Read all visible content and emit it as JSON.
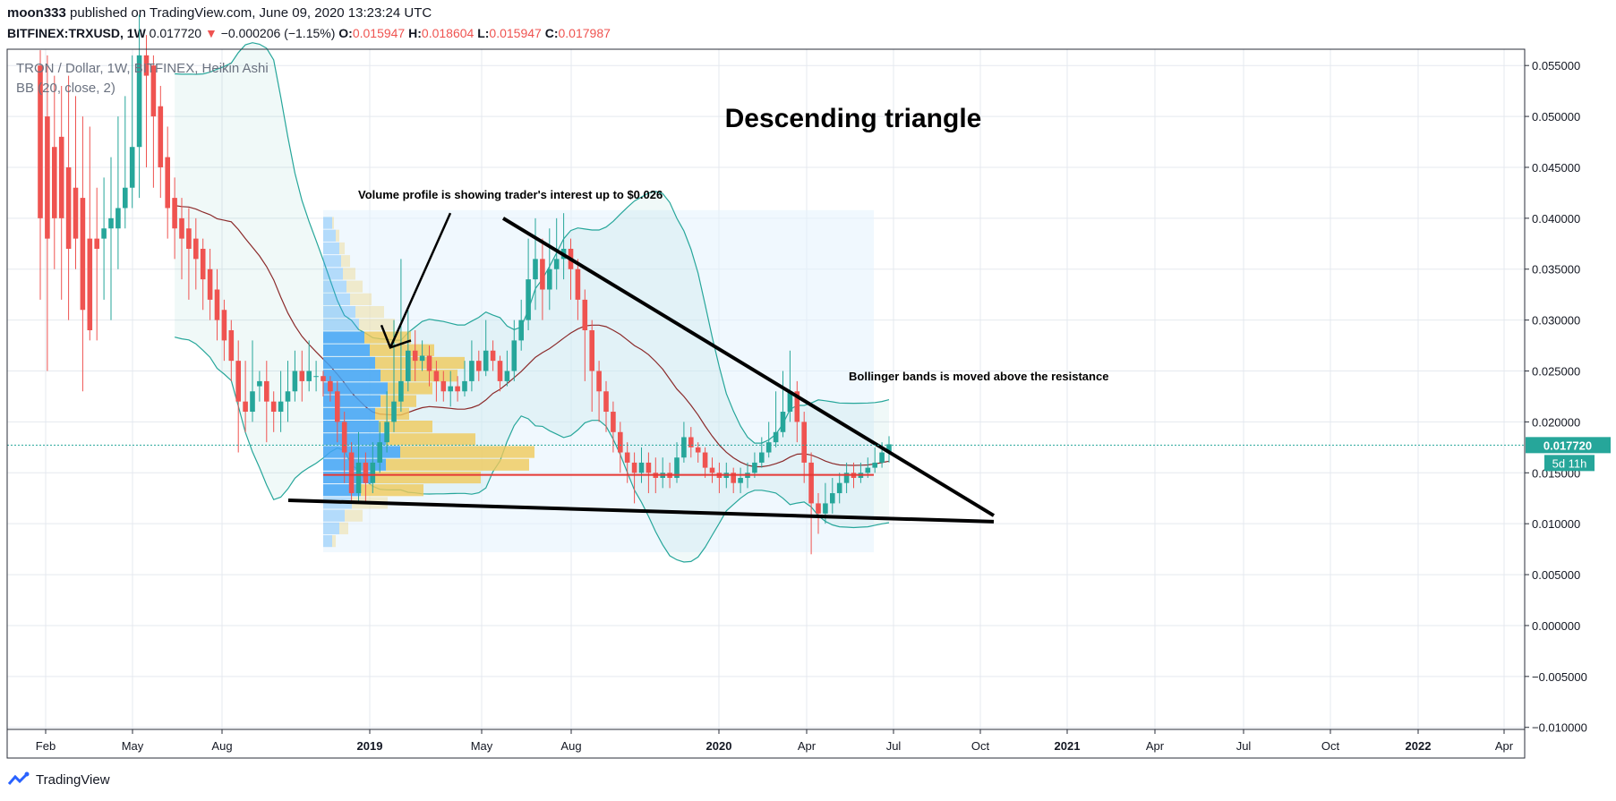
{
  "header": {
    "author": "moon333",
    "published_text": "published on TradingView.com, June 09, 2020 13:23:24 UTC",
    "symbol": "BITFINEX:TRXUSD, 1W",
    "last": "0.017720",
    "change": "−0.000206 (−1.15%)",
    "open_label": "O:",
    "open": "0.015947",
    "high_label": "H:",
    "high": "0.018604",
    "low_label": "L:",
    "low": "0.015947",
    "close_label": "C:",
    "close": "0.017987"
  },
  "legend": {
    "title": "TRON / Dollar, 1W, BITFINEX, Heikin Ashi",
    "indicator": "BB (20, close, 2)"
  },
  "footer": {
    "brand": "TradingView"
  },
  "colors": {
    "up": "#26a69a",
    "down": "#ef5350",
    "band": "#26a69a",
    "basis": "#8b2a2a",
    "vp_up": "#42a5f5",
    "vp_down": "#f0c95a"
  },
  "chart_data": {
    "type": "candlestick",
    "title": "Descending triangle",
    "y_ticks": [
      "0.055000",
      "0.050000",
      "0.045000",
      "0.040000",
      "0.035000",
      "0.030000",
      "0.025000",
      "0.020000",
      "0.015000",
      "0.010000",
      "0.005000",
      "0.000000",
      "−0.005000",
      "−0.010000"
    ],
    "ylim": [
      -0.0102,
      0.0566
    ],
    "x_ticks": [
      "Feb",
      "May",
      "Aug",
      "2019",
      "May",
      "Aug",
      "2020",
      "Apr",
      "Jul",
      "Oct",
      "2021",
      "Apr",
      "Jul",
      "Oct",
      "2022",
      "Apr"
    ],
    "last_price_label": "0.017720",
    "countdown_label": "5d 11h",
    "support_level": 0.0148,
    "annotations": [
      {
        "text": "Volume profile is showing trader's interest up to $0.026"
      },
      {
        "text": "Bollinger bands is moved above the resistance"
      }
    ],
    "candles": [
      [
        0.055,
        0.04,
        0.0565,
        0.032
      ],
      [
        0.05,
        0.038,
        0.056,
        0.025
      ],
      [
        0.047,
        0.04,
        0.054,
        0.035
      ],
      [
        0.048,
        0.04,
        0.053,
        0.032
      ],
      [
        0.045,
        0.037,
        0.054,
        0.03
      ],
      [
        0.043,
        0.038,
        0.052,
        0.035
      ],
      [
        0.042,
        0.031,
        0.05,
        0.023
      ],
      [
        0.038,
        0.029,
        0.049,
        0.028
      ],
      [
        0.038,
        0.037,
        0.043,
        0.028
      ],
      [
        0.038,
        0.039,
        0.044,
        0.032
      ],
      [
        0.039,
        0.04,
        0.046,
        0.03
      ],
      [
        0.039,
        0.041,
        0.05,
        0.035
      ],
      [
        0.041,
        0.043,
        0.052,
        0.039
      ],
      [
        0.043,
        0.047,
        0.056,
        0.041
      ],
      [
        0.047,
        0.056,
        0.06,
        0.042
      ],
      [
        0.056,
        0.054,
        0.058,
        0.045
      ],
      [
        0.055,
        0.05,
        0.056,
        0.043
      ],
      [
        0.051,
        0.045,
        0.053,
        0.042
      ],
      [
        0.046,
        0.041,
        0.049,
        0.038
      ],
      [
        0.042,
        0.039,
        0.044,
        0.036
      ],
      [
        0.04,
        0.038,
        0.042,
        0.034
      ],
      [
        0.039,
        0.037,
        0.041,
        0.032
      ],
      [
        0.038,
        0.036,
        0.04,
        0.033
      ],
      [
        0.037,
        0.034,
        0.038,
        0.031
      ],
      [
        0.035,
        0.032,
        0.037,
        0.03
      ],
      [
        0.033,
        0.03,
        0.035,
        0.028
      ],
      [
        0.031,
        0.028,
        0.032,
        0.026
      ],
      [
        0.029,
        0.026,
        0.03,
        0.024
      ],
      [
        0.026,
        0.022,
        0.028,
        0.017
      ],
      [
        0.022,
        0.021,
        0.026,
        0.019
      ],
      [
        0.021,
        0.023,
        0.028,
        0.02
      ],
      [
        0.0235,
        0.024,
        0.025,
        0.022
      ],
      [
        0.024,
        0.022,
        0.026,
        0.018
      ],
      [
        0.022,
        0.021,
        0.023,
        0.019
      ],
      [
        0.021,
        0.022,
        0.025,
        0.019
      ],
      [
        0.022,
        0.023,
        0.026,
        0.02
      ],
      [
        0.023,
        0.025,
        0.027,
        0.022
      ],
      [
        0.025,
        0.024,
        0.027,
        0.022
      ],
      [
        0.024,
        0.025,
        0.028,
        0.023
      ],
      [
        0.0245,
        0.0245,
        0.026,
        0.023
      ],
      [
        0.0245,
        0.024,
        0.025,
        0.0225
      ],
      [
        0.024,
        0.023,
        0.0245,
        0.022
      ],
      [
        0.023,
        0.02,
        0.024,
        0.018
      ],
      [
        0.02,
        0.017,
        0.021,
        0.014
      ],
      [
        0.017,
        0.013,
        0.018,
        0.012
      ],
      [
        0.013,
        0.016,
        0.019,
        0.012
      ],
      [
        0.016,
        0.014,
        0.017,
        0.012
      ],
      [
        0.014,
        0.016,
        0.018,
        0.013
      ],
      [
        0.016,
        0.018,
        0.02,
        0.015
      ],
      [
        0.018,
        0.02,
        0.023,
        0.017
      ],
      [
        0.02,
        0.022,
        0.03,
        0.019
      ],
      [
        0.022,
        0.024,
        0.036,
        0.021
      ],
      [
        0.024,
        0.027,
        0.031,
        0.023
      ],
      [
        0.027,
        0.026,
        0.029,
        0.024
      ],
      [
        0.026,
        0.0265,
        0.028,
        0.025
      ],
      [
        0.0265,
        0.025,
        0.0275,
        0.0235
      ],
      [
        0.025,
        0.024,
        0.026,
        0.022
      ],
      [
        0.024,
        0.023,
        0.025,
        0.022
      ],
      [
        0.023,
        0.0235,
        0.025,
        0.0215
      ],
      [
        0.0235,
        0.023,
        0.0245,
        0.022
      ],
      [
        0.023,
        0.024,
        0.026,
        0.0225
      ],
      [
        0.024,
        0.026,
        0.028,
        0.023
      ],
      [
        0.026,
        0.025,
        0.027,
        0.024
      ],
      [
        0.025,
        0.027,
        0.03,
        0.0245
      ],
      [
        0.027,
        0.026,
        0.028,
        0.025
      ],
      [
        0.026,
        0.024,
        0.0265,
        0.023
      ],
      [
        0.024,
        0.025,
        0.027,
        0.0235
      ],
      [
        0.025,
        0.028,
        0.03,
        0.024
      ],
      [
        0.028,
        0.03,
        0.032,
        0.027
      ],
      [
        0.03,
        0.034,
        0.038,
        0.029
      ],
      [
        0.034,
        0.036,
        0.04,
        0.031
      ],
      [
        0.036,
        0.033,
        0.038,
        0.03
      ],
      [
        0.033,
        0.035,
        0.039,
        0.031
      ],
      [
        0.035,
        0.036,
        0.04,
        0.033
      ],
      [
        0.036,
        0.037,
        0.0405,
        0.034
      ],
      [
        0.037,
        0.035,
        0.038,
        0.032
      ],
      [
        0.035,
        0.032,
        0.036,
        0.03
      ],
      [
        0.032,
        0.029,
        0.033,
        0.024
      ],
      [
        0.029,
        0.025,
        0.03,
        0.021
      ],
      [
        0.025,
        0.023,
        0.026,
        0.02
      ],
      [
        0.023,
        0.021,
        0.024,
        0.019
      ],
      [
        0.021,
        0.019,
        0.022,
        0.017
      ],
      [
        0.019,
        0.017,
        0.02,
        0.015
      ],
      [
        0.017,
        0.016,
        0.018,
        0.014
      ],
      [
        0.016,
        0.015,
        0.017,
        0.012
      ],
      [
        0.015,
        0.016,
        0.0175,
        0.014
      ],
      [
        0.016,
        0.015,
        0.017,
        0.013
      ],
      [
        0.015,
        0.0145,
        0.0165,
        0.013
      ],
      [
        0.0145,
        0.015,
        0.0165,
        0.0135
      ],
      [
        0.015,
        0.0145,
        0.016,
        0.0135
      ],
      [
        0.0145,
        0.0165,
        0.018,
        0.014
      ],
      [
        0.0165,
        0.0185,
        0.02,
        0.016
      ],
      [
        0.0185,
        0.0175,
        0.0195,
        0.0165
      ],
      [
        0.0175,
        0.017,
        0.018,
        0.016
      ],
      [
        0.017,
        0.0155,
        0.0175,
        0.0145
      ],
      [
        0.0155,
        0.015,
        0.0165,
        0.014
      ],
      [
        0.015,
        0.0145,
        0.016,
        0.013
      ],
      [
        0.0145,
        0.015,
        0.016,
        0.0135
      ],
      [
        0.015,
        0.014,
        0.0155,
        0.013
      ],
      [
        0.014,
        0.0145,
        0.0155,
        0.013
      ],
      [
        0.0145,
        0.015,
        0.016,
        0.0135
      ],
      [
        0.015,
        0.016,
        0.017,
        0.0145
      ],
      [
        0.016,
        0.017,
        0.0185,
        0.0155
      ],
      [
        0.017,
        0.018,
        0.02,
        0.0165
      ],
      [
        0.018,
        0.019,
        0.023,
        0.0175
      ],
      [
        0.019,
        0.021,
        0.025,
        0.0185
      ],
      [
        0.021,
        0.023,
        0.027,
        0.02
      ],
      [
        0.023,
        0.02,
        0.024,
        0.018
      ],
      [
        0.02,
        0.016,
        0.021,
        0.014
      ],
      [
        0.016,
        0.012,
        0.017,
        0.007
      ],
      [
        0.012,
        0.011,
        0.013,
        0.009
      ],
      [
        0.011,
        0.012,
        0.014,
        0.01
      ],
      [
        0.012,
        0.013,
        0.0145,
        0.011
      ],
      [
        0.013,
        0.014,
        0.015,
        0.012
      ],
      [
        0.014,
        0.015,
        0.016,
        0.013
      ],
      [
        0.015,
        0.0145,
        0.016,
        0.0135
      ],
      [
        0.0145,
        0.015,
        0.016,
        0.014
      ],
      [
        0.015,
        0.0155,
        0.0165,
        0.0145
      ],
      [
        0.0155,
        0.016,
        0.0175,
        0.015
      ],
      [
        0.016,
        0.017,
        0.018,
        0.0155
      ],
      [
        0.017,
        0.0178,
        0.0186,
        0.016
      ]
    ]
  }
}
